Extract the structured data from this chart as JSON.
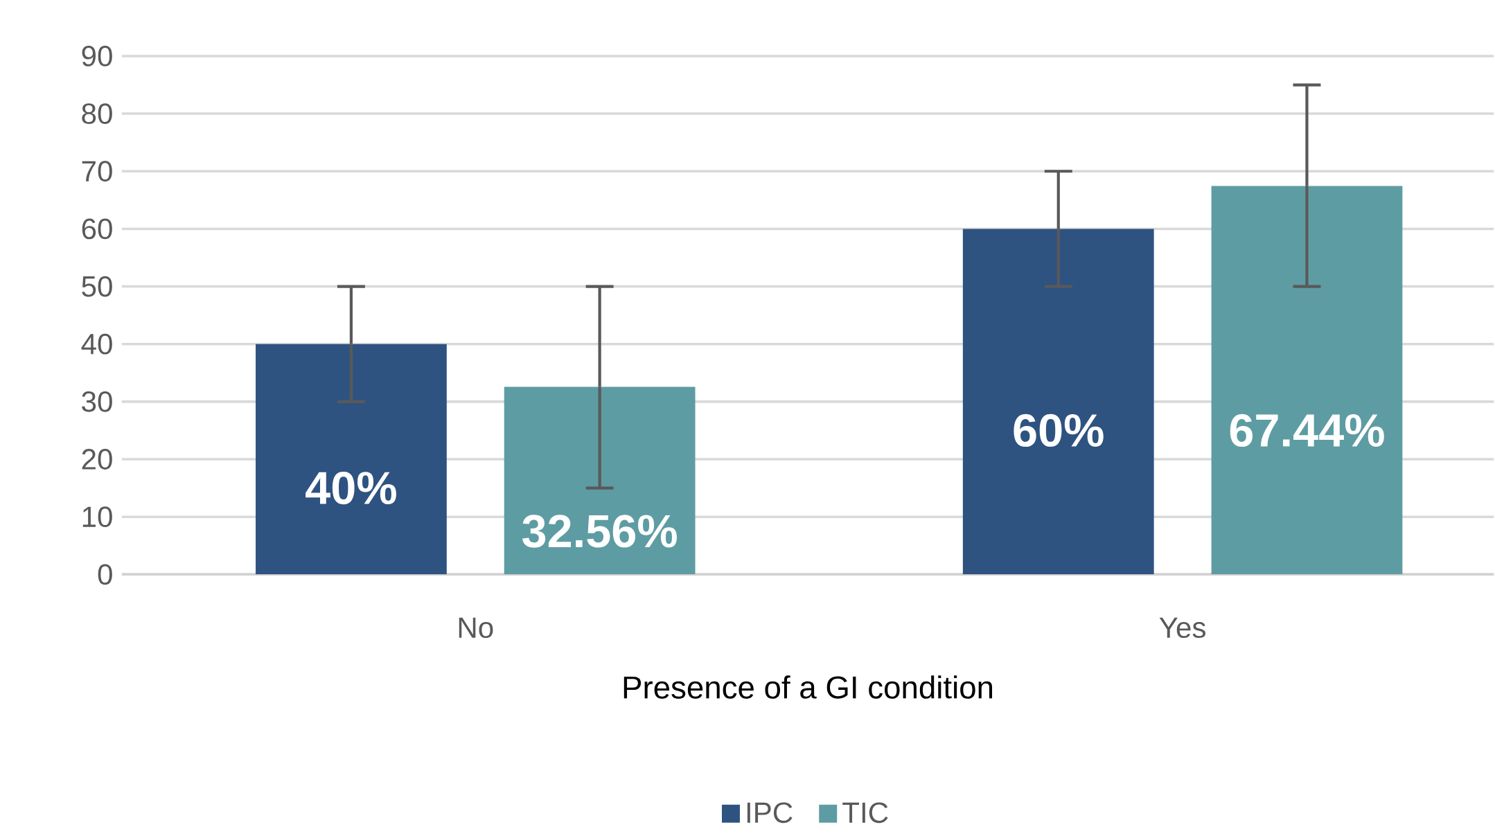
{
  "chart_data": {
    "type": "bar",
    "xlabel": "Presence of a GI condition",
    "categories": [
      "No",
      "Yes"
    ],
    "series": [
      {
        "name": "IPC",
        "color": "#2e5381",
        "values": [
          40,
          60
        ],
        "errors": [
          [
            30,
            50
          ],
          [
            50,
            70
          ]
        ],
        "value_labels": [
          "40%",
          "60%"
        ]
      },
      {
        "name": "TIC",
        "color": "#5e9ca3",
        "values": [
          32.56,
          67.44
        ],
        "errors": [
          [
            15,
            50
          ],
          [
            50,
            85
          ]
        ],
        "value_labels": [
          "32.56%",
          "67.44%"
        ]
      }
    ],
    "ylim": [
      0,
      90
    ],
    "yticks": [
      0,
      10,
      20,
      30,
      40,
      50,
      60,
      70,
      80,
      90
    ],
    "grid": "y",
    "legend": "bottom"
  }
}
